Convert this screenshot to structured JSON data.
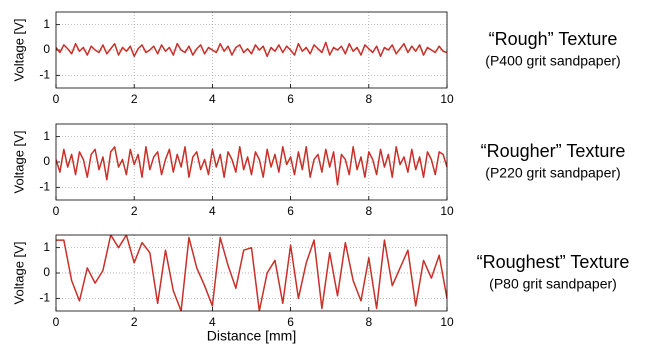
{
  "chart_data": [
    {
      "type": "line",
      "title": "“Rough” Texture",
      "subtitle": "(P400 grit sandpaper)",
      "ylabel": "Voltage [V]",
      "color": "#c8302a",
      "grid": true,
      "xlim": [
        0,
        10
      ],
      "ylim": [
        -1.5,
        1.5
      ],
      "xticks": [
        0,
        2,
        4,
        6,
        8,
        10
      ],
      "yticks": [
        -1,
        0,
        1
      ],
      "x": [
        0,
        0.1,
        0.2,
        0.3,
        0.4,
        0.5,
        0.6,
        0.7,
        0.8,
        0.9,
        1,
        1.1,
        1.2,
        1.3,
        1.4,
        1.5,
        1.6,
        1.7,
        1.8,
        1.9,
        2,
        2.1,
        2.2,
        2.3,
        2.4,
        2.5,
        2.6,
        2.7,
        2.8,
        2.9,
        3,
        3.1,
        3.2,
        3.3,
        3.4,
        3.5,
        3.6,
        3.7,
        3.8,
        3.9,
        4,
        4.1,
        4.2,
        4.3,
        4.4,
        4.5,
        4.6,
        4.7,
        4.8,
        4.9,
        5,
        5.1,
        5.2,
        5.3,
        5.4,
        5.5,
        5.6,
        5.7,
        5.8,
        5.9,
        6,
        6.1,
        6.2,
        6.3,
        6.4,
        6.5,
        6.6,
        6.7,
        6.8,
        6.9,
        7,
        7.1,
        7.2,
        7.3,
        7.4,
        7.5,
        7.6,
        7.7,
        7.8,
        7.9,
        8,
        8.1,
        8.2,
        8.3,
        8.4,
        8.5,
        8.6,
        8.7,
        8.8,
        8.9,
        9,
        9.1,
        9.2,
        9.3,
        9.4,
        9.5,
        9.6,
        9.7,
        9.8,
        9.9,
        10
      ],
      "values": [
        0.1,
        -0.1,
        0.2,
        0.05,
        -0.15,
        0.25,
        -0.05,
        0.1,
        -0.2,
        0.15,
        0,
        -0.1,
        0.2,
        -0.15,
        0.05,
        0.25,
        -0.2,
        0.1,
        -0.05,
        0.15,
        -0.25,
        0.05,
        0.2,
        -0.1,
        0,
        0.15,
        -0.15,
        0.2,
        -0.05,
        0.1,
        -0.2,
        0.25,
        0,
        -0.1,
        0.15,
        -0.2,
        0.05,
        0.2,
        -0.15,
        0.1,
        0,
        -0.1,
        0.25,
        -0.05,
        0.15,
        -0.2,
        0.1,
        0.2,
        -0.1,
        0.05,
        -0.15,
        0.2,
        0,
        0.15,
        -0.25,
        0.1,
        -0.05,
        0.2,
        -0.1,
        0.15,
        0,
        -0.2,
        0.25,
        -0.05,
        0.1,
        -0.15,
        0.2,
        0.05,
        -0.1,
        0.3,
        -0.2,
        0.1,
        0,
        0.15,
        -0.15,
        0.25,
        -0.05,
        0.1,
        -0.2,
        0.2,
        0.05,
        -0.1,
        0.15,
        -0.25,
        0.1,
        0,
        0.2,
        -0.15,
        0.05,
        0.25,
        -0.1,
        0.15,
        -0.05,
        0.2,
        -0.2,
        0.1,
        0,
        -0.1,
        0.15,
        -0.05,
        -0.1
      ]
    },
    {
      "type": "line",
      "title": "“Rougher” Texture",
      "subtitle": "(P220 grit sandpaper)",
      "ylabel": "Voltage [V]",
      "color": "#c8302a",
      "grid": true,
      "xlim": [
        0,
        10
      ],
      "ylim": [
        -1.5,
        1.5
      ],
      "xticks": [
        0,
        2,
        4,
        6,
        8,
        10
      ],
      "yticks": [
        -1,
        0,
        1
      ],
      "x": [
        0,
        0.1,
        0.2,
        0.3,
        0.4,
        0.5,
        0.6,
        0.7,
        0.8,
        0.9,
        1,
        1.1,
        1.2,
        1.3,
        1.4,
        1.5,
        1.6,
        1.7,
        1.8,
        1.9,
        2,
        2.1,
        2.2,
        2.3,
        2.4,
        2.5,
        2.6,
        2.7,
        2.8,
        2.9,
        3,
        3.1,
        3.2,
        3.3,
        3.4,
        3.5,
        3.6,
        3.7,
        3.8,
        3.9,
        4,
        4.1,
        4.2,
        4.3,
        4.4,
        4.5,
        4.6,
        4.7,
        4.8,
        4.9,
        5,
        5.1,
        5.2,
        5.3,
        5.4,
        5.5,
        5.6,
        5.7,
        5.8,
        5.9,
        6,
        6.1,
        6.2,
        6.3,
        6.4,
        6.5,
        6.6,
        6.7,
        6.8,
        6.9,
        7,
        7.1,
        7.2,
        7.3,
        7.4,
        7.5,
        7.6,
        7.7,
        7.8,
        7.9,
        8,
        8.1,
        8.2,
        8.3,
        8.4,
        8.5,
        8.6,
        8.7,
        8.8,
        8.9,
        9,
        9.1,
        9.2,
        9.3,
        9.4,
        9.5,
        9.6,
        9.7,
        9.8,
        9.9,
        10
      ],
      "values": [
        0.1,
        -0.4,
        0.5,
        -0.2,
        0.3,
        -0.5,
        0.4,
        0.1,
        -0.6,
        0.3,
        0.5,
        -0.3,
        0.2,
        -0.7,
        0.4,
        0.6,
        -0.2,
        0.1,
        -0.5,
        0.5,
        -0.1,
        0.3,
        -0.6,
        0.6,
        -0.3,
        0.2,
        0.4,
        -0.5,
        0.1,
        0.5,
        -0.4,
        0.3,
        -0.2,
        0.6,
        -0.6,
        0.2,
        0.4,
        -0.3,
        0.1,
        -0.5,
        0.5,
        -0.2,
        0.3,
        -0.6,
        0.4,
        0.1,
        -0.4,
        0.6,
        -0.3,
        0.2,
        -0.5,
        0.4,
        0.1,
        -0.6,
        0.5,
        -0.2,
        0.3,
        -0.4,
        0.6,
        -0.1,
        0.2,
        -0.5,
        0.4,
        -0.3,
        0.6,
        -0.6,
        0.1,
        0.3,
        -0.4,
        0.5,
        -0.2,
        0.4,
        -0.9,
        0.3,
        0.1,
        -0.5,
        0.6,
        -0.3,
        0.2,
        -0.6,
        0.4,
        0.1,
        -0.5,
        0.5,
        -0.2,
        0.3,
        -0.6,
        0.6,
        -0.1,
        0.2,
        -0.4,
        0.5,
        -0.3,
        0.2,
        -0.6,
        0.4,
        0.1,
        -0.5,
        0.4,
        0.3,
        -0.2
      ]
    },
    {
      "type": "line",
      "title": "“Roughest” Texture",
      "subtitle": "(P80 grit sandpaper)",
      "ylabel": "Voltage [V]",
      "xlabel": "Distance [mm]",
      "color": "#c8302a",
      "grid": true,
      "xlim": [
        0,
        10
      ],
      "ylim": [
        -1.5,
        1.5
      ],
      "xticks": [
        0,
        2,
        4,
        6,
        8,
        10
      ],
      "yticks": [
        -1,
        0,
        1
      ],
      "x": [
        0,
        0.2,
        0.4,
        0.6,
        0.8,
        1,
        1.2,
        1.4,
        1.6,
        1.8,
        2,
        2.2,
        2.4,
        2.6,
        2.8,
        3,
        3.2,
        3.4,
        3.6,
        3.8,
        4,
        4.2,
        4.4,
        4.6,
        4.8,
        5,
        5.2,
        5.4,
        5.6,
        5.8,
        6,
        6.2,
        6.4,
        6.6,
        6.8,
        7,
        7.2,
        7.4,
        7.6,
        7.8,
        8,
        8.2,
        8.4,
        8.6,
        8.8,
        9,
        9.2,
        9.4,
        9.6,
        9.8,
        10
      ],
      "values": [
        1.3,
        1.3,
        -0.3,
        -1.1,
        0.2,
        -0.4,
        0.1,
        1.5,
        1.0,
        1.5,
        0.4,
        1.2,
        0.8,
        -1.2,
        0.9,
        -0.7,
        -1.5,
        1.4,
        0.2,
        -0.5,
        -1.3,
        1.4,
        0.3,
        -0.6,
        0.9,
        1.0,
        -1.5,
        0.0,
        0.5,
        -1.2,
        1.1,
        -1.0,
        0.4,
        1.3,
        -1.4,
        0.8,
        -0.9,
        1.2,
        -0.3,
        -1.1,
        0.6,
        -1.4,
        1.3,
        -0.5,
        0.2,
        0.9,
        -1.3,
        0.5,
        -0.2,
        0.7,
        -1.0
      ]
    }
  ]
}
